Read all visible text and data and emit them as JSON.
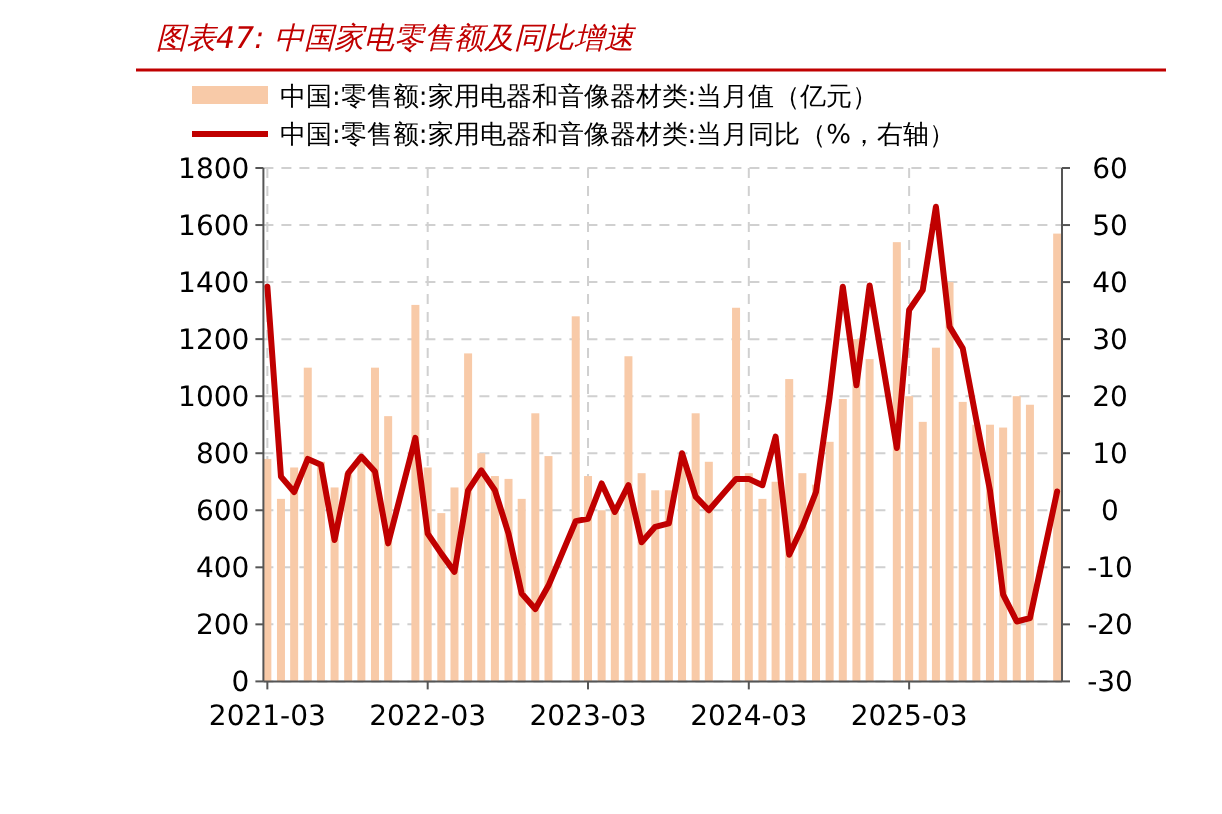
{
  "chart_data": {
    "type": "bar",
    "title": "图表47:  中国家电零售额及同比增速",
    "x": [
      "2021-03",
      "2021-04",
      "2021-05",
      "2021-06",
      "2021-07",
      "2021-08",
      "2021-09",
      "2021-10",
      "2021-11",
      "2021-12",
      "2022-02",
      "2022-03",
      "2022-04",
      "2022-05",
      "2022-06",
      "2022-07",
      "2022-08",
      "2022-09",
      "2022-10",
      "2022-11",
      "2022-12",
      "2023-02",
      "2023-03",
      "2023-04",
      "2023-05",
      "2023-06",
      "2023-07",
      "2023-08",
      "2023-09",
      "2023-10",
      "2023-11",
      "2023-12",
      "2024-02",
      "2024-03",
      "2024-04",
      "2024-05",
      "2024-06",
      "2024-07",
      "2024-08",
      "2024-09",
      "2024-10",
      "2024-11",
      "2024-12",
      "2025-02",
      "2025-03",
      "2025-04",
      "2025-05",
      "2025-06",
      "2025-07",
      "2025-08",
      "2025-09",
      "2025-10",
      "2025-11",
      "2025-12",
      "2026-02"
    ],
    "series": [
      {
        "name": "中国:零售额:家用电器和音像器材类:当月值（亿元）",
        "color": "#f8caa8",
        "values": [
          780,
          640,
          750,
          1100,
          770,
          680,
          730,
          790,
          1100,
          930,
          1320,
          750,
          590,
          680,
          1150,
          800,
          720,
          710,
          640,
          940,
          790,
          1280,
          720,
          600,
          620,
          1140,
          730,
          670,
          670,
          760,
          940,
          770,
          1310,
          730,
          640,
          700,
          1060,
          730,
          690,
          840,
          990,
          1200,
          1130,
          1540,
          1000,
          910,
          1170,
          1400,
          980,
          900,
          900,
          890,
          1000,
          970,
          1570
        ]
      },
      {
        "name": "中国:零售额:家用电器和音像器材类:当月同比（%，右轴）",
        "type": "line",
        "axis": "y2",
        "color": "#c00000",
        "values": [
          39.2,
          5.9,
          3.2,
          9.0,
          8.0,
          -5.2,
          6.5,
          9.4,
          6.8,
          -5.8,
          12.7,
          -4.1,
          -7.6,
          -10.8,
          3.5,
          7.0,
          3.5,
          -4.1,
          -14.6,
          -17.3,
          -13.2,
          -1.9,
          -1.5,
          4.7,
          -0.3,
          4.4,
          -5.6,
          -2.9,
          -2.3,
          10.0,
          2.4,
          0.0,
          5.5,
          5.5,
          4.4,
          12.9,
          -7.8,
          -2.9,
          3.2,
          19.9,
          39.2,
          21.9,
          39.4,
          10.9,
          35.1,
          38.6,
          53.2,
          32.2,
          28.4,
          15.8,
          3.5,
          -14.8,
          -19.5,
          -18.9,
          3.3
        ]
      }
    ],
    "xlim": [
      "2021-02-20",
      "2026-02-12"
    ],
    "xticks": [
      "2021-03",
      "2022-03",
      "2023-03",
      "2024-03",
      "2025-03"
    ],
    "ylim": [
      0,
      1800
    ],
    "yticks": [
      0,
      200,
      400,
      600,
      800,
      1000,
      1200,
      1400,
      1600,
      1800
    ],
    "y2lim": [
      -30,
      60
    ],
    "y2ticks": [
      -30,
      -20,
      -10,
      0,
      10,
      20,
      30,
      40,
      50,
      60
    ],
    "grid": true,
    "legend": "top",
    "line_style": "solid",
    "marker": "none"
  }
}
